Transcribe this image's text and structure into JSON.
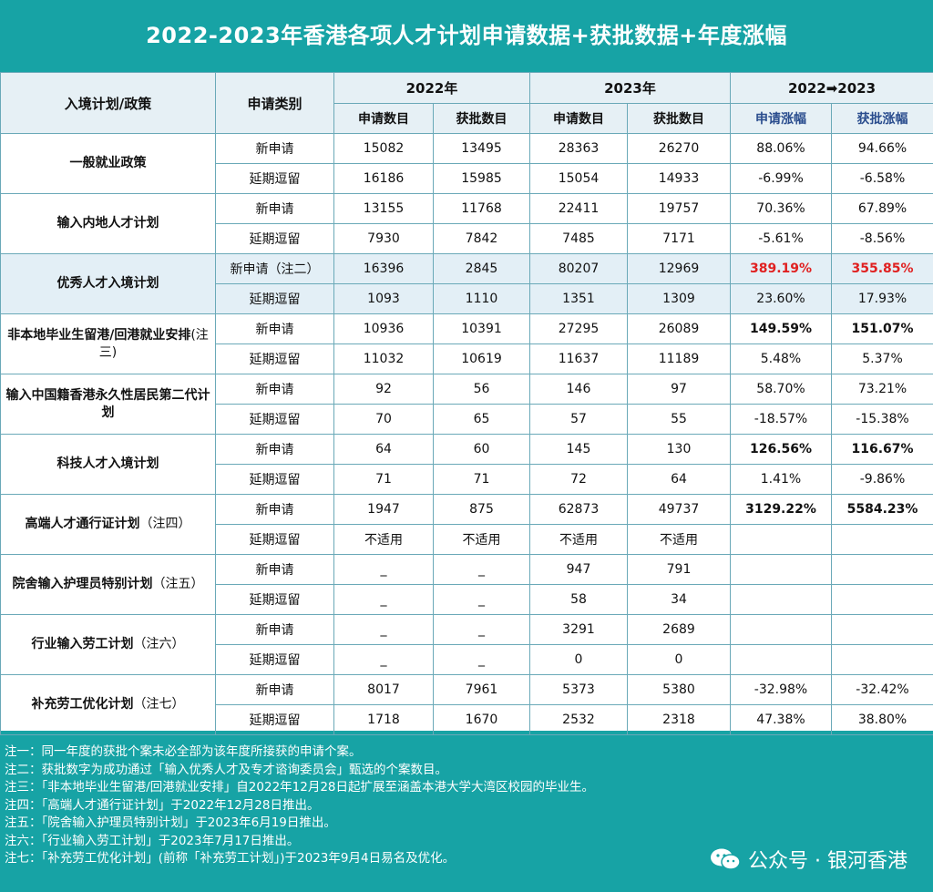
{
  "title": "2022-2023年香港各项人才计划申请数据+获批数据+年度涨幅",
  "header": {
    "plan": "入境计划/政策",
    "category": "申请类别",
    "y2022": "2022年",
    "y2023": "2023年",
    "change": "2022➡2023",
    "applied": "申请数目",
    "approved": "获批数目",
    "applied_growth": "申请涨幅",
    "approved_growth": "获批涨幅"
  },
  "plans": [
    {
      "name": "一般就业政策",
      "note": "",
      "rows": [
        {
          "cat": "新申请",
          "a22": "15082",
          "b22": "13495",
          "a23": "28363",
          "b23": "26270",
          "ga": "88.06%",
          "gb": "94.66%",
          "style": ""
        },
        {
          "cat": "延期逗留",
          "a22": "16186",
          "b22": "15985",
          "a23": "15054",
          "b23": "14933",
          "ga": "-6.99%",
          "gb": "-6.58%",
          "style": ""
        }
      ]
    },
    {
      "name": "输入内地人才计划",
      "note": "",
      "rows": [
        {
          "cat": "新申请",
          "a22": "13155",
          "b22": "11768",
          "a23": "22411",
          "b23": "19757",
          "ga": "70.36%",
          "gb": "67.89%",
          "style": ""
        },
        {
          "cat": "延期逗留",
          "a22": "7930",
          "b22": "7842",
          "a23": "7485",
          "b23": "7171",
          "ga": "-5.61%",
          "gb": "-8.56%",
          "style": ""
        }
      ]
    },
    {
      "name": "优秀人才入境计划",
      "note": "",
      "highlight": true,
      "rows": [
        {
          "cat": "新申请（注二）",
          "a22": "16396",
          "b22": "2845",
          "a23": "80207",
          "b23": "12969",
          "ga": "389.19%",
          "gb": "355.85%",
          "style": "red"
        },
        {
          "cat": "延期逗留",
          "a22": "1093",
          "b22": "1110",
          "a23": "1351",
          "b23": "1309",
          "ga": "23.60%",
          "gb": "17.93%",
          "style": ""
        }
      ]
    },
    {
      "name": "非本地毕业生留港/回港就业安排",
      "note": "(注三)",
      "rows": [
        {
          "cat": "新申请",
          "a22": "10936",
          "b22": "10391",
          "a23": "27295",
          "b23": "26089",
          "ga": "149.59%",
          "gb": "151.07%",
          "style": "bold"
        },
        {
          "cat": "延期逗留",
          "a22": "11032",
          "b22": "10619",
          "a23": "11637",
          "b23": "11189",
          "ga": "5.48%",
          "gb": "5.37%",
          "style": ""
        }
      ]
    },
    {
      "name": "输入中国籍香港永久性居民第二代计划",
      "note": "",
      "rows": [
        {
          "cat": "新申请",
          "a22": "92",
          "b22": "56",
          "a23": "146",
          "b23": "97",
          "ga": "58.70%",
          "gb": "73.21%",
          "style": ""
        },
        {
          "cat": "延期逗留",
          "a22": "70",
          "b22": "65",
          "a23": "57",
          "b23": "55",
          "ga": "-18.57%",
          "gb": "-15.38%",
          "style": ""
        }
      ]
    },
    {
      "name": "科技人才入境计划",
      "note": "",
      "rows": [
        {
          "cat": "新申请",
          "a22": "64",
          "b22": "60",
          "a23": "145",
          "b23": "130",
          "ga": "126.56%",
          "gb": "116.67%",
          "style": "bold"
        },
        {
          "cat": "延期逗留",
          "a22": "71",
          "b22": "71",
          "a23": "72",
          "b23": "64",
          "ga": "1.41%",
          "gb": "-9.86%",
          "style": ""
        }
      ]
    },
    {
      "name": "高端人才通行证计划",
      "note": "（注四）",
      "rows": [
        {
          "cat": "新申请",
          "a22": "1947",
          "b22": "875",
          "a23": "62873",
          "b23": "49737",
          "ga": "3129.22%",
          "gb": "5584.23%",
          "style": "bold"
        },
        {
          "cat": "延期逗留",
          "a22": "不适用",
          "b22": "不适用",
          "a23": "不适用",
          "b23": "不适用",
          "ga": "",
          "gb": "",
          "style": ""
        }
      ]
    },
    {
      "name": "院舍输入护理员特别计划",
      "note": "（注五）",
      "rows": [
        {
          "cat": "新申请",
          "a22": "_",
          "b22": "_",
          "a23": "947",
          "b23": "791",
          "ga": "",
          "gb": "",
          "style": ""
        },
        {
          "cat": "延期逗留",
          "a22": "_",
          "b22": "_",
          "a23": "58",
          "b23": "34",
          "ga": "",
          "gb": "",
          "style": ""
        }
      ]
    },
    {
      "name": "行业输入劳工计划",
      "note": "（注六）",
      "rows": [
        {
          "cat": "新申请",
          "a22": "_",
          "b22": "_",
          "a23": "3291",
          "b23": "2689",
          "ga": "",
          "gb": "",
          "style": ""
        },
        {
          "cat": "延期逗留",
          "a22": "_",
          "b22": "_",
          "a23": "0",
          "b23": "0",
          "ga": "",
          "gb": "",
          "style": ""
        }
      ]
    },
    {
      "name": "补充劳工优化计划",
      "note": "（注七）",
      "rows": [
        {
          "cat": "新申请",
          "a22": "8017",
          "b22": "7961",
          "a23": "5373",
          "b23": "5380",
          "ga": "-32.98%",
          "gb": "-32.42%",
          "style": ""
        },
        {
          "cat": "延期逗留",
          "a22": "1718",
          "b22": "1670",
          "a23": "2532",
          "b23": "2318",
          "ga": "47.38%",
          "gb": "38.80%",
          "style": ""
        }
      ]
    }
  ],
  "notes": [
    "注一：同一年度的获批个案未必全部为该年度所接获的申请个案。",
    "注二：获批数字为成功通过「输入优秀人才及专才谘询委员会」甄选的个案数目。",
    "注三：「非本地毕业生留港/回港就业安排」自2022年12月28日起扩展至涵盖本港大学大湾区校园的毕业生。",
    "注四：「高端人才通行证计划」于2022年12月28日推出。",
    "注五：「院舍输入护理员特别计划」于2023年6月19日推出。",
    "注六：「行业输入劳工计划」于2023年7月17日推出。",
    "注七：「补充劳工优化计划」(前称「补充劳工计划」)于2023年9月4日易名及优化。"
  ],
  "brand": "公众号 · 银河香港",
  "brand_icon": "wechat-icon"
}
